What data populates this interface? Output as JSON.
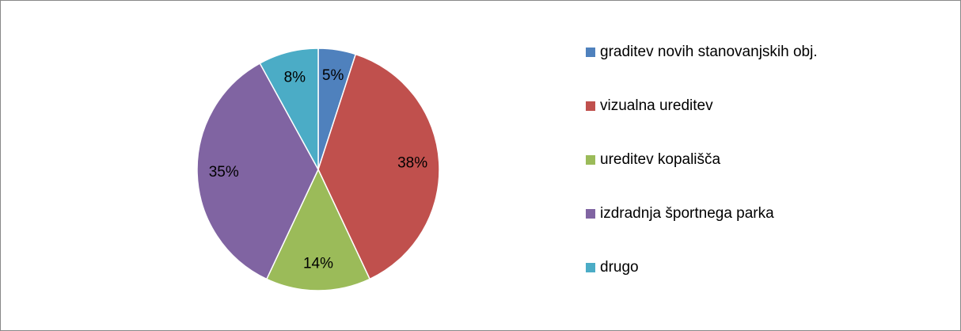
{
  "chart_data": {
    "type": "pie",
    "categories": [
      "graditev novih stanovanjskih obj.",
      "vizualna ureditev",
      "ureditev kopališča",
      "izdradnja športnega parka",
      "drugo"
    ],
    "values": [
      5,
      38,
      14,
      35,
      8
    ],
    "value_labels": [
      "5%",
      "38%",
      "14%",
      "35%",
      "8%"
    ],
    "colors": [
      "#4f81bd",
      "#c0504d",
      "#9bbb59",
      "#8064a2",
      "#4bacc6"
    ],
    "legend": "right"
  }
}
